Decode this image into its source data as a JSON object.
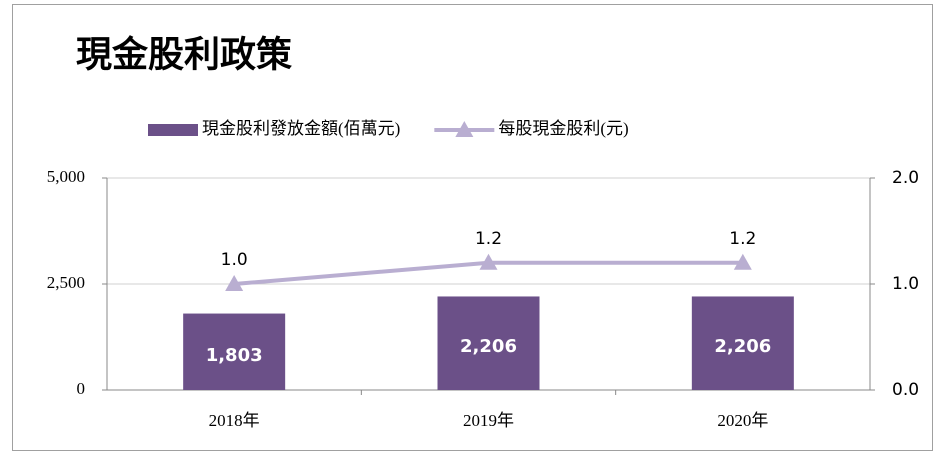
{
  "chart_data": {
    "type": "bar",
    "title": "現金股利政策",
    "categories": [
      "2018年",
      "2019年",
      "2020年"
    ],
    "series": [
      {
        "name": "現金股利發放金額(佰萬元)",
        "color": "#6b5088",
        "values": [
          1803,
          2206,
          2206
        ],
        "value_labels": [
          "1,803",
          "2,206",
          "2,206"
        ]
      },
      {
        "name": "每股現金股利(元)",
        "type": "line",
        "axis": "y2",
        "color": "#b9aed1",
        "values": [
          1.0,
          1.2,
          1.2
        ],
        "value_labels": [
          "1.0",
          "1.2",
          "1.2"
        ]
      }
    ],
    "ylim": [
      0,
      5000
    ],
    "yticks": [
      0,
      {
        "value": 2500,
        "label": "2,500"
      },
      {
        "value": 5000,
        "label": "5,000"
      }
    ],
    "y2lim": [
      0,
      2
    ],
    "y2ticks": [
      {
        "value": 0,
        "label": "0.0"
      },
      {
        "value": 1,
        "label": "1.0"
      },
      {
        "value": 2,
        "label": "2.0"
      }
    ],
    "grid": true,
    "legend": "top"
  }
}
